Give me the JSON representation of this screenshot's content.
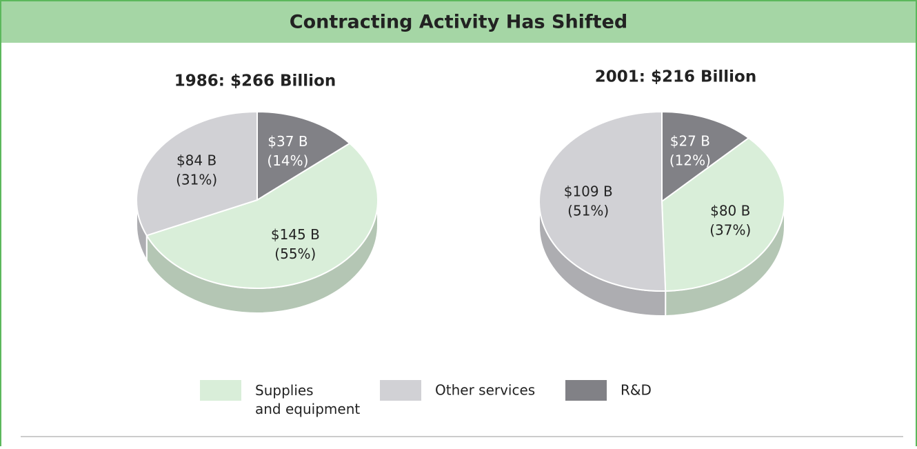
{
  "title": "Contracting Activity Has Shifted",
  "chart_data": [
    {
      "type": "pie",
      "title": "1986: $266 Billion",
      "categories": [
        "Supplies and equipment",
        "Other services",
        "R&D"
      ],
      "values": [
        145,
        84,
        37
      ],
      "value_labels": [
        "$145 B",
        "$84 B",
        "$37 B"
      ],
      "percents": [
        55,
        31,
        14
      ],
      "percent_labels": [
        "(55%)",
        "(31%)",
        "(14%)"
      ],
      "colors": [
        "#d9eed9",
        "#d1d1d5",
        "#818186"
      ]
    },
    {
      "type": "pie",
      "title": "2001: $216 Billion",
      "categories": [
        "Supplies and equipment",
        "Other services",
        "R&D"
      ],
      "values": [
        80,
        109,
        27
      ],
      "value_labels": [
        "$80 B",
        "$109 B",
        "$27 B"
      ],
      "percents": [
        37,
        51,
        12
      ],
      "percent_labels": [
        "(37%)",
        "(51%)",
        "(12%)"
      ],
      "colors": [
        "#d9eed9",
        "#d1d1d5",
        "#818186"
      ]
    }
  ]
}
